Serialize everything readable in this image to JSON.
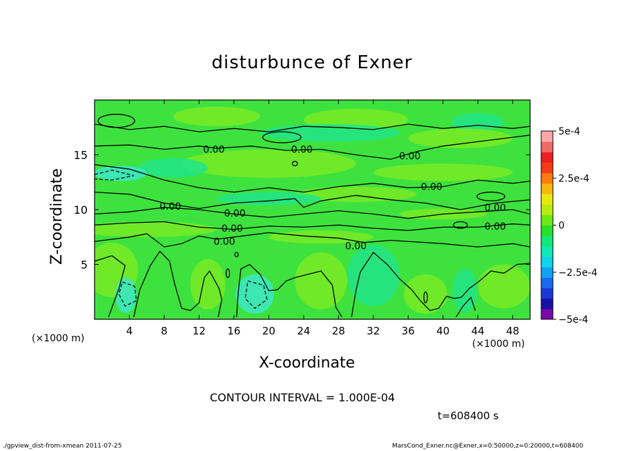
{
  "title": "disturbunce of Exner",
  "xlabel": "X-coordinate",
  "ylabel": "Z-coordinate",
  "x_unit_left": "(×1000 m)",
  "x_unit_right": "(×1000 m)",
  "contour_interval": "CONTOUR INTERVAL = 1.000E-04",
  "time_label": "t=608400 s",
  "footer_left": "./gpview_dist-from-xmean  2011-07-25",
  "footer_right": "MarsCond_Exner.nc@Exner,x=0:50000,z=0:20000,t=608400",
  "chart_data": {
    "type": "heatmap",
    "title": "disturbunce of Exner",
    "xlabel": "X-coordinate",
    "ylabel": "Z-coordinate",
    "xlim": [
      0,
      50
    ],
    "ylim": [
      0,
      20
    ],
    "x_ticks": [
      4,
      8,
      12,
      16,
      20,
      24,
      28,
      32,
      36,
      40,
      44,
      48
    ],
    "y_ticks": [
      5,
      10,
      15
    ],
    "contour_labels": [
      {
        "text": "0.00",
        "x": 13.7,
        "z": 15.5
      },
      {
        "text": "0.00",
        "x": 23.8,
        "z": 15.5
      },
      {
        "text": "0.00",
        "x": 36.2,
        "z": 14.9
      },
      {
        "text": "0.00",
        "x": 38.7,
        "z": 12.1
      },
      {
        "text": "0.00",
        "x": 8.7,
        "z": 10.3
      },
      {
        "text": "0.00",
        "x": 16.1,
        "z": 9.7
      },
      {
        "text": "0.00",
        "x": 46.0,
        "z": 10.2
      },
      {
        "text": "0.00",
        "x": 15.8,
        "z": 8.3
      },
      {
        "text": "0.00",
        "x": 46.0,
        "z": 8.5
      },
      {
        "text": "0.00",
        "x": 14.9,
        "z": 7.1
      },
      {
        "text": "0.00",
        "x": 30.0,
        "z": 6.7
      }
    ],
    "colorbar": {
      "range": [
        -0.0005,
        0.0005
      ],
      "tick_labels": [
        "5e-4",
        "2.5e-4",
        "0",
        "−2.5e-4",
        "−5e-4"
      ],
      "tick_values": [
        0.0005,
        0.00025,
        0,
        -0.00025,
        -0.0005
      ],
      "colors": [
        "#7a0aa8",
        "#1a10a8",
        "#1a3ad8",
        "#1a6aee",
        "#10a2f2",
        "#10d2e8",
        "#10e8b8",
        "#10e878",
        "#28e028",
        "#70e818",
        "#b8ec10",
        "#e8e810",
        "#f8b810",
        "#f87a10",
        "#f43a18",
        "#ec2020",
        "#f06a6a",
        "#f8a8a8"
      ]
    },
    "field_colors": {
      "base": "#3ee23e",
      "positive": "#78ea24",
      "negative": "#22e488",
      "strong_negative": "#3ce8c8"
    }
  }
}
